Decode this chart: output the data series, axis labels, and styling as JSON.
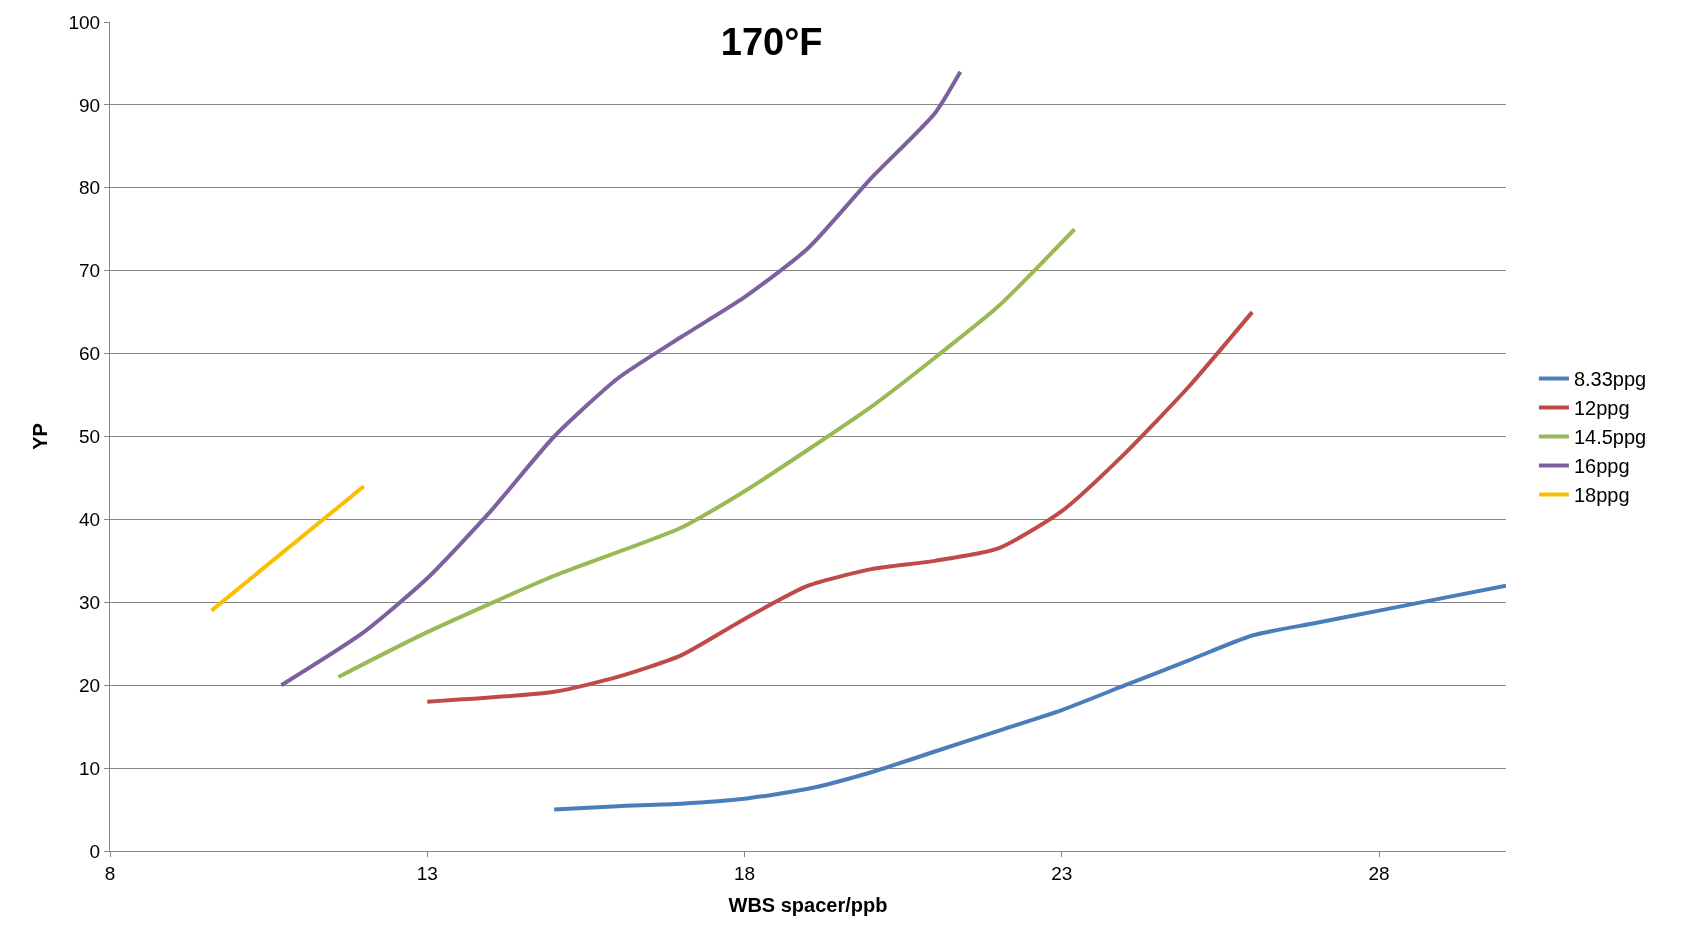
{
  "chart_data": {
    "type": "line",
    "title": "170°F",
    "xlabel": "WBS spacer/ppb",
    "ylabel": "YP",
    "xlim": [
      8,
      30
    ],
    "xticks": [
      8,
      13,
      18,
      23,
      28
    ],
    "ylim": [
      0,
      100
    ],
    "yticks": [
      0,
      10,
      20,
      30,
      40,
      50,
      60,
      70,
      80,
      90,
      100
    ],
    "grid": "y",
    "legend": "right",
    "marker": "none",
    "line_style": "solid",
    "series": [
      {
        "name": "8.33ppg",
        "color": "#4a7ebb",
        "x": [
          15,
          16,
          17,
          18,
          19,
          20,
          21,
          22,
          23,
          24,
          25,
          26,
          27,
          28,
          29,
          30
        ],
        "values": [
          5,
          5.4,
          5.7,
          6.3,
          7.5,
          9.5,
          12,
          14.5,
          17,
          20,
          23,
          26,
          27.5,
          29,
          30.5,
          32
        ]
      },
      {
        "name": "12ppg",
        "color": "#be4b48",
        "x": [
          13,
          15,
          16,
          17,
          18,
          19,
          20,
          21,
          22,
          23,
          24,
          25,
          26
        ],
        "values": [
          18,
          19.2,
          21,
          23.6,
          28,
          32,
          34,
          35,
          36.5,
          41,
          48,
          56,
          65
        ]
      },
      {
        "name": "14.5ppg",
        "color": "#98b954",
        "x": [
          11.6,
          13,
          15,
          17,
          18,
          19,
          20,
          21,
          22,
          23.2
        ],
        "values": [
          21,
          26.4,
          33.2,
          39,
          43.4,
          48.4,
          53.6,
          59.5,
          65.7,
          75
        ]
      },
      {
        "name": "16ppg",
        "color": "#7d60a0",
        "x": [
          10.7,
          12,
          13,
          14,
          15,
          16,
          17,
          18,
          19,
          20,
          21,
          21.4
        ],
        "values": [
          20,
          26.4,
          32.9,
          41,
          50,
          57,
          62,
          66.8,
          72.7,
          81.2,
          89,
          94
        ]
      },
      {
        "name": "18ppg",
        "color": "#f9bf00",
        "x": [
          9.6,
          12
        ],
        "values": [
          29,
          44
        ]
      }
    ]
  }
}
